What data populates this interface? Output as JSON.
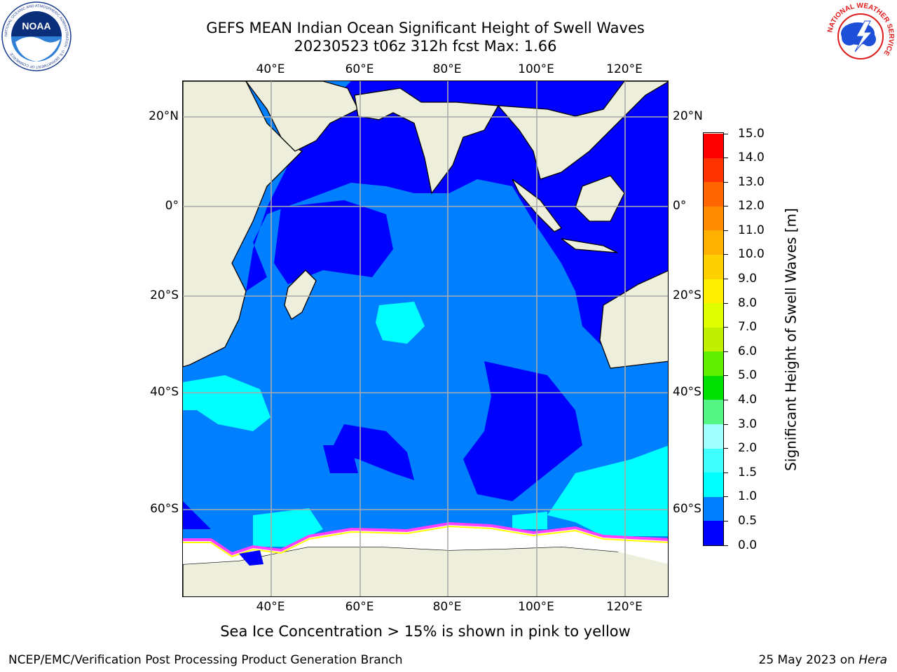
{
  "title": {
    "line1": "GEFS MEAN Indian Ocean Significant Height of Swell Waves",
    "line2": "20230523 t06z 312h fcst   Max: 1.66"
  },
  "axes": {
    "lon_labels": [
      "40°E",
      "60°E",
      "80°E",
      "100°E",
      "120°E"
    ],
    "lat_labels": [
      "20°N",
      "0°",
      "20°S",
      "40°S",
      "60°S"
    ]
  },
  "colorbar": {
    "label": "Significant Height of Swell Waves [m]",
    "ticks": [
      "0.0",
      "0.5",
      "1.0",
      "1.5",
      "2.0",
      "3.0",
      "4.0",
      "5.0",
      "6.0",
      "7.0",
      "8.0",
      "9.0",
      "10.0",
      "11.0",
      "12.0",
      "13.0",
      "14.0",
      "15.0"
    ],
    "colors": [
      "#0000ff",
      "#0080ff",
      "#00ffff",
      "#40ffff",
      "#a0ffff",
      "#55f585",
      "#00e000",
      "#60f000",
      "#c0f000",
      "#e0ff00",
      "#fff000",
      "#ffd000",
      "#ffb000",
      "#ff8c00",
      "#ff6600",
      "#ff3300",
      "#ff0000"
    ]
  },
  "map": {
    "land_color": "#eeeedd",
    "ice_color": "#ffffff",
    "ice_edge_colors": [
      "#ff40ff",
      "#ffff00"
    ]
  },
  "logos": {
    "left": {
      "text": "NOAA",
      "ring_text": "NATIONAL OCEANIC AND ATMOSPHERIC ADMINISTRATION · U.S. DEPARTMENT OF COMMERCE"
    },
    "right": {
      "ring_text": "NATIONAL WEATHER SERVICE"
    }
  },
  "footnote": "Sea Ice Concentration > 15% is shown in pink to yellow",
  "credit": "NCEP/EMC/Verification Post Processing Product Generation Branch",
  "date": {
    "text": "25 May 2023 on",
    "host": "Hera"
  }
}
